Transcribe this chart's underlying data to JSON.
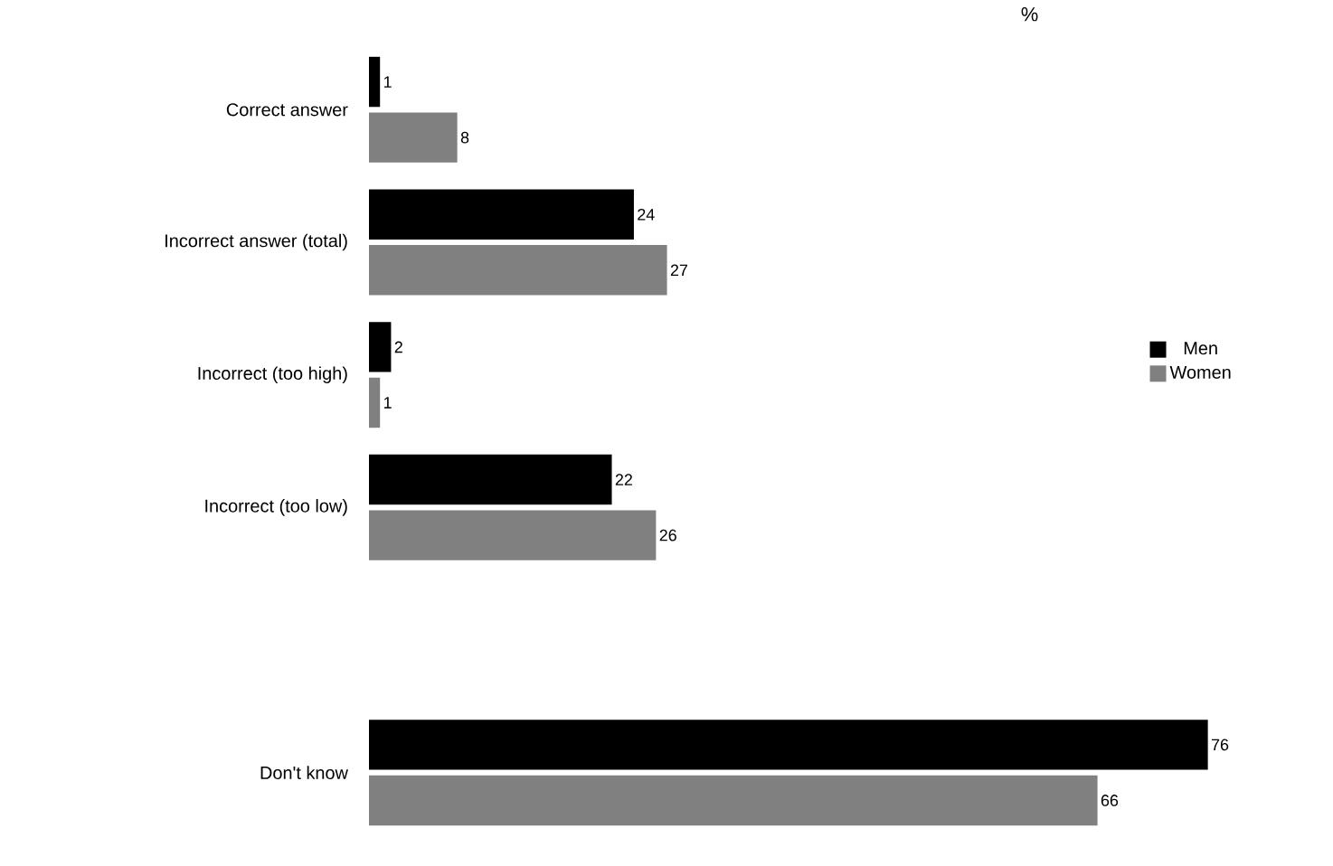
{
  "chart_data": {
    "type": "bar",
    "orientation": "horizontal",
    "categories": [
      "Correct answer",
      "Incorrect answer (total)",
      "Incorrect (too high)",
      "Incorrect (too low)",
      null,
      "Don't know"
    ],
    "series": [
      {
        "name": "Men",
        "color": "#000000",
        "values": [
          1,
          24,
          2,
          22,
          null,
          76
        ]
      },
      {
        "name": "Women",
        "color": "#808080",
        "values": [
          8,
          27,
          1,
          26,
          null,
          66
        ]
      }
    ],
    "data_labels": true,
    "tick_labels": "y",
    "grid": false,
    "legend": "right",
    "annotations": [
      "%"
    ]
  }
}
